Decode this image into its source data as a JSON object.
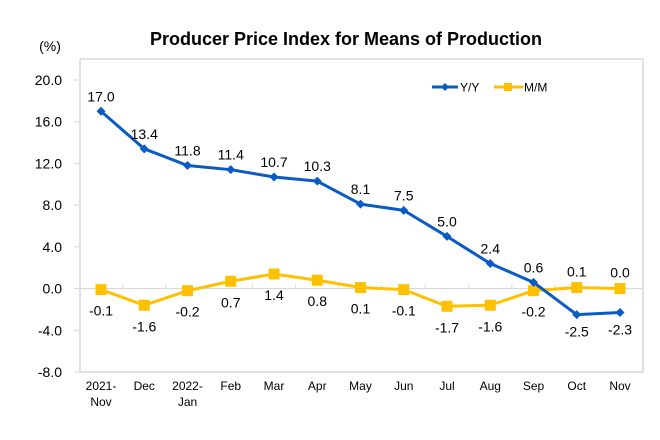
{
  "chart_data": {
    "type": "line",
    "title": "Producer Price Index for Means of Production",
    "ylabel": "(%)",
    "xlabel": "",
    "ylim": [
      -8.0,
      20.0
    ],
    "yticks": [
      -8.0,
      -4.0,
      0.0,
      4.0,
      8.0,
      12.0,
      16.0,
      20.0
    ],
    "ytick_labels": [
      "-8.0",
      "-4.0",
      "0.0",
      "4.0",
      "8.0",
      "12.0",
      "16.0",
      "20.0"
    ],
    "categories": [
      [
        "2021-",
        "Nov"
      ],
      [
        "Dec"
      ],
      [
        "2022-",
        "Jan"
      ],
      [
        "Feb"
      ],
      [
        "Mar"
      ],
      [
        "Apr"
      ],
      [
        "May"
      ],
      [
        "Jun"
      ],
      [
        "Jul"
      ],
      [
        "Aug"
      ],
      [
        "Sep"
      ],
      [
        "Oct"
      ],
      [
        "Nov"
      ]
    ],
    "grid": "horizontal-zero-line",
    "legend": {
      "placement": "top-right",
      "orientation": "horizontal"
    },
    "series": [
      {
        "name": "Y/Y",
        "color": "#0a5bc4",
        "marker": "diamond",
        "values": [
          17.0,
          13.4,
          11.8,
          11.4,
          10.7,
          10.3,
          8.1,
          7.5,
          5.0,
          2.4,
          0.6,
          -2.5,
          -2.3
        ],
        "labels": [
          "17.0",
          "13.4",
          "11.8",
          "11.4",
          "10.7",
          "10.3",
          "8.1",
          "7.5",
          "5.0",
          "2.4",
          "0.6",
          "-2.5",
          "-2.3"
        ],
        "label_position": [
          "above",
          "above",
          "above",
          "above",
          "above",
          "above",
          "above",
          "above",
          "above",
          "above",
          "above",
          "below",
          "below"
        ]
      },
      {
        "name": "M/M",
        "color": "#ffc000",
        "marker": "square",
        "values": [
          -0.1,
          -1.6,
          -0.2,
          0.7,
          1.4,
          0.8,
          0.1,
          -0.1,
          -1.7,
          -1.6,
          -0.2,
          0.1,
          0.0
        ],
        "labels": [
          "-0.1",
          "-1.6",
          "-0.2",
          "0.7",
          "1.4",
          "0.8",
          "0.1",
          "-0.1",
          "-1.7",
          "-1.6",
          "-0.2",
          "0.1",
          "0.0"
        ],
        "label_position": [
          "below",
          "below",
          "below",
          "below",
          "below",
          "below",
          "below",
          "below",
          "below",
          "below",
          "below",
          "above",
          "above"
        ]
      }
    ]
  },
  "colors": {
    "frame": "#d9d9d9",
    "axis_text": "#000000"
  }
}
